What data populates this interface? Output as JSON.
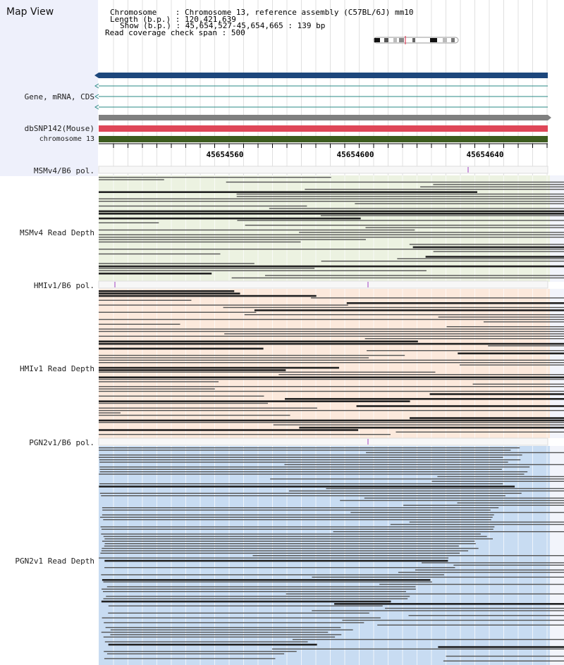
{
  "header": {
    "title": "Map View",
    "info": {
      "chromosome_label": "Chromosome",
      "chromosome_value": "Chromosome 13, reference assembly (C57BL/6J) mm10",
      "length_label": "Length (b.p.)",
      "length_value": "120,421,639",
      "show_label": "Show (b.p.)",
      "show_value": "45,654,527-45,654,665 : 139 bp",
      "span_label": "Read coverage check span",
      "span_value": "500"
    }
  },
  "region": {
    "start": 45654527,
    "end": 45654665,
    "length_bp": 139
  },
  "tracks": {
    "gene": {
      "label": "Gene, mRNA, CDS"
    },
    "dbsnp": {
      "label": "dbSNP142(Mouse)"
    },
    "chromosome": {
      "label": "chromosome 13"
    }
  },
  "ruler": {
    "tick_labels": [
      "45654560",
      "45654600",
      "45654640"
    ]
  },
  "samples": [
    {
      "pol_label": "MSMv4/B6 pol.",
      "depth_label": "MSMv4 Read Depth",
      "color": "#ecf2e1"
    },
    {
      "pol_label": "HMIv1/B6 pol.",
      "depth_label": "HMIv1 Read Depth",
      "color": "#fce9dc"
    },
    {
      "pol_label": "PGN2v1/B6 pol.",
      "depth_label": "PGN2v1 Read Depth",
      "color": "#c8dcf2"
    }
  ],
  "colors": {
    "gene_bar": "#1d477c",
    "gene_line": "#2a8a84",
    "snp_bar": "#808080",
    "dbsnp_bar": "#df4758",
    "chromosome_bar": "#3d5c1f",
    "read": "#555555",
    "pol_mark": "#a040c0"
  }
}
